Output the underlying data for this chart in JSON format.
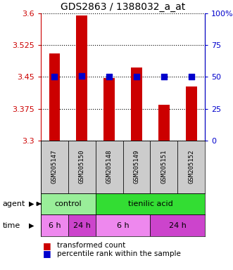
{
  "title": "GDS2863 / 1388032_a_at",
  "samples": [
    "GSM205147",
    "GSM205150",
    "GSM205148",
    "GSM205149",
    "GSM205151",
    "GSM205152"
  ],
  "bar_values": [
    3.505,
    3.595,
    3.447,
    3.472,
    3.385,
    3.428
  ],
  "percentile_values": [
    50,
    51,
    50,
    50,
    50,
    50
  ],
  "ylim_left": [
    3.3,
    3.6
  ],
  "ylim_right": [
    0,
    100
  ],
  "yticks_left": [
    3.3,
    3.375,
    3.45,
    3.525,
    3.6
  ],
  "yticks_right": [
    0,
    25,
    50,
    75,
    100
  ],
  "ytick_labels_left": [
    "3.3",
    "3.375",
    "3.45",
    "3.525",
    "3.6"
  ],
  "ytick_labels_right": [
    "0",
    "25",
    "50",
    "75",
    "100%"
  ],
  "bar_color": "#CC0000",
  "dot_color": "#0000CC",
  "agent_labels": [
    {
      "label": "control",
      "span": [
        0,
        2
      ],
      "color": "#99EE99"
    },
    {
      "label": "tienilic acid",
      "span": [
        2,
        6
      ],
      "color": "#33DD33"
    }
  ],
  "time_labels": [
    {
      "label": "6 h",
      "span": [
        0,
        1
      ],
      "color": "#EE88EE"
    },
    {
      "label": "24 h",
      "span": [
        1,
        2
      ],
      "color": "#CC44CC"
    },
    {
      "label": "6 h",
      "span": [
        2,
        4
      ],
      "color": "#EE88EE"
    },
    {
      "label": "24 h",
      "span": [
        4,
        6
      ],
      "color": "#CC44CC"
    }
  ],
  "legend_bar_label": "transformed count",
  "legend_dot_label": "percentile rank within the sample",
  "bar_color_legend": "#CC0000",
  "dot_color_legend": "#0000CC",
  "ylabel_left_color": "#CC0000",
  "ylabel_right_color": "#0000CC",
  "bar_width": 0.4,
  "dot_size": 35,
  "sample_bg": "#CCCCCC",
  "fig_width": 3.31,
  "fig_height": 3.84,
  "dpi": 100
}
